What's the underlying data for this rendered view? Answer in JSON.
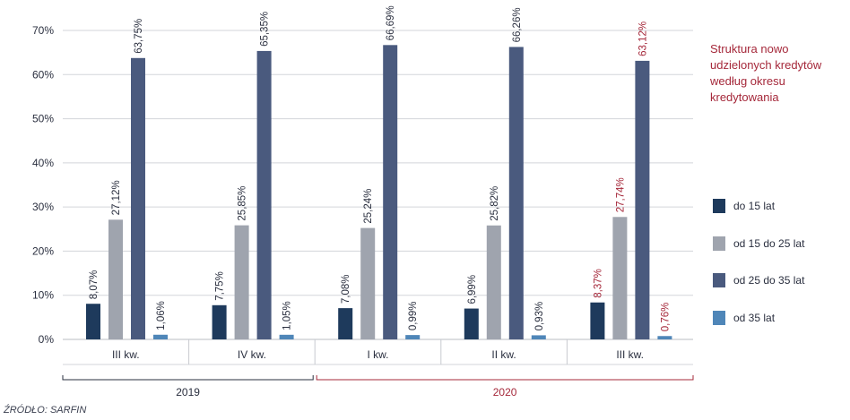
{
  "chart_data": {
    "type": "bar",
    "title": "Struktura nowo udzielonych kredytów według okresu kredytowania",
    "categories": [
      "III kw.",
      "IV kw.",
      "I kw.",
      "II kw.",
      "III kw."
    ],
    "groups": [
      {
        "label": "2019",
        "start": 0,
        "end": 1,
        "color": "#2a2f3f"
      },
      {
        "label": "2020",
        "start": 2,
        "end": 4,
        "color": "#a5283a"
      }
    ],
    "highlight_category_index": 4,
    "highlight_color": "#a5283a",
    "label_color": "#2a2f3f",
    "series": [
      {
        "name": "do 15 lat",
        "color": "#1e3a5c",
        "values": [
          8.07,
          7.75,
          7.08,
          6.99,
          8.37
        ],
        "labels": [
          "8,07%",
          "7,75%",
          "7,08%",
          "6,99%",
          "8,37%"
        ]
      },
      {
        "name": "od 15 do 25 lat",
        "color": "#9fa4ae",
        "values": [
          27.12,
          25.85,
          25.24,
          25.82,
          27.74
        ],
        "labels": [
          "27,12%",
          "25,85%",
          "25,24%",
          "25,82%",
          "27,74%"
        ]
      },
      {
        "name": "od 25 do 35 lat",
        "color": "#4a5a7e",
        "values": [
          63.75,
          65.35,
          66.69,
          66.26,
          63.12
        ],
        "labels": [
          "63,75%",
          "65,35%",
          "66,69%",
          "66,26%",
          "63,12%"
        ]
      },
      {
        "name": "od 35 lat",
        "color": "#4f86b8",
        "values": [
          1.06,
          1.05,
          0.99,
          0.93,
          0.76
        ],
        "labels": [
          "1,06%",
          "1,05%",
          "0,99%",
          "0,93%",
          "0,76%"
        ]
      }
    ],
    "ylim": [
      0,
      70
    ],
    "yticks": [
      0,
      10,
      20,
      30,
      40,
      50,
      60,
      70
    ],
    "ytick_labels": [
      "0%",
      "10%",
      "20%",
      "30%",
      "40%",
      "50%",
      "60%",
      "70%"
    ],
    "grid": true,
    "legend_position": "right"
  },
  "source": "ŹRÓDŁO: SARFIN"
}
